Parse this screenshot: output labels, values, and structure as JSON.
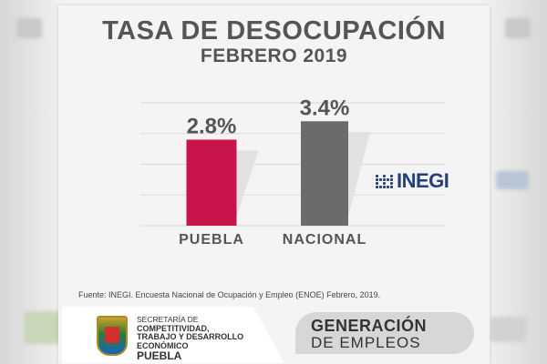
{
  "header": {
    "title": "TASA DE DESOCUPACIÓN",
    "subtitle": "FEBRERO 2019"
  },
  "chart_data": {
    "type": "bar",
    "categories": [
      "PUEBLA",
      "NACIONAL"
    ],
    "values": [
      2.8,
      3.4
    ],
    "value_labels": [
      "2.8%",
      "3.4%"
    ],
    "colors": [
      "#c8144a",
      "#6b6b6b"
    ],
    "ylim": [
      0,
      4
    ],
    "grid": true,
    "xlabel": "",
    "ylabel": ""
  },
  "logo": {
    "inegi_text": "INEGI",
    "color": "#24417b"
  },
  "source": "Fuente: INEGI. Encuesta Nacional de Ocupación y Empleo (ENOE) Febrero, 2019.",
  "footer": {
    "secretaria": {
      "line1": "SECRETARÍA DE",
      "line2": "COMPETITIVIDAD,",
      "line3": "TRABAJO Y DESARROLLO",
      "line4": "ECONÓMICO",
      "line5": "PUEBLA"
    },
    "campaign": {
      "line1": "GENERACIÓN",
      "line2": "DE EMPLEOS"
    }
  }
}
